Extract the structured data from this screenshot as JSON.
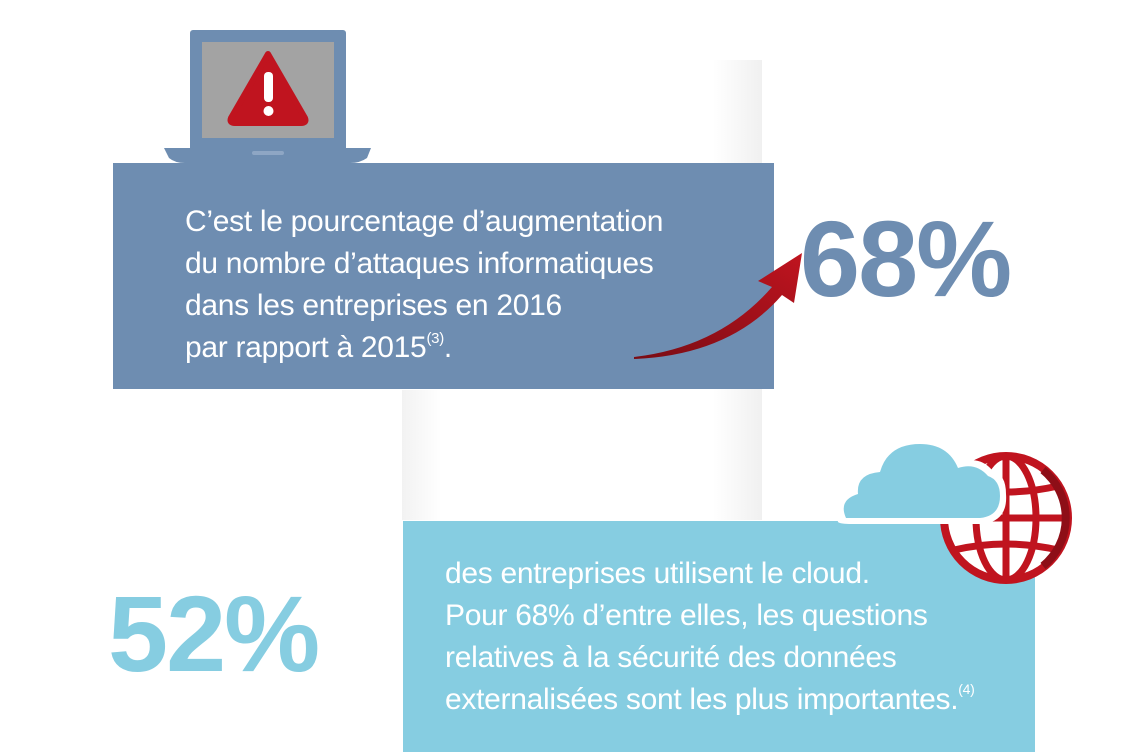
{
  "colors": {
    "slate_blue": "#6e8db1",
    "light_blue": "#86cde1",
    "alert_red": "#c0141f",
    "screen_gray": "#a3a3a3"
  },
  "icons": {
    "laptop": "laptop-icon",
    "warning": "warning-triangle-icon",
    "arrow": "curved-arrow-icon",
    "cloud": "cloud-icon",
    "globe": "globe-icon"
  },
  "stat1": {
    "value": "68%",
    "lines": [
      "C’est le pourcentage d’augmentation",
      "du nombre d’attaques informatiques",
      "dans les entreprises en 2016",
      "par rapport à 2015"
    ],
    "note": "(3)",
    "trailing": "."
  },
  "stat2": {
    "value": "52%",
    "lines": [
      "des entreprises utilisent le cloud.",
      "Pour 68% d’entre elles, les questions",
      "relatives à la sécurité des données",
      "externalisées sont les plus importantes."
    ],
    "note": "(4)"
  }
}
